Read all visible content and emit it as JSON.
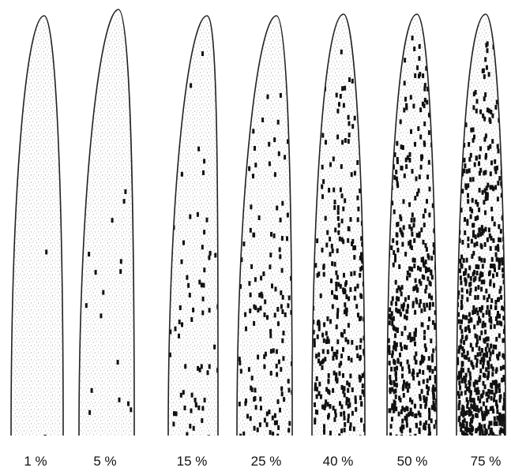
{
  "panels": [
    {
      "label": "1 %"
    },
    {
      "label": "5 %"
    },
    {
      "label": "15 %"
    },
    {
      "label": "25 %"
    },
    {
      "label": "40 %"
    },
    {
      "label": "50 %"
    },
    {
      "label": "75 %"
    }
  ]
}
